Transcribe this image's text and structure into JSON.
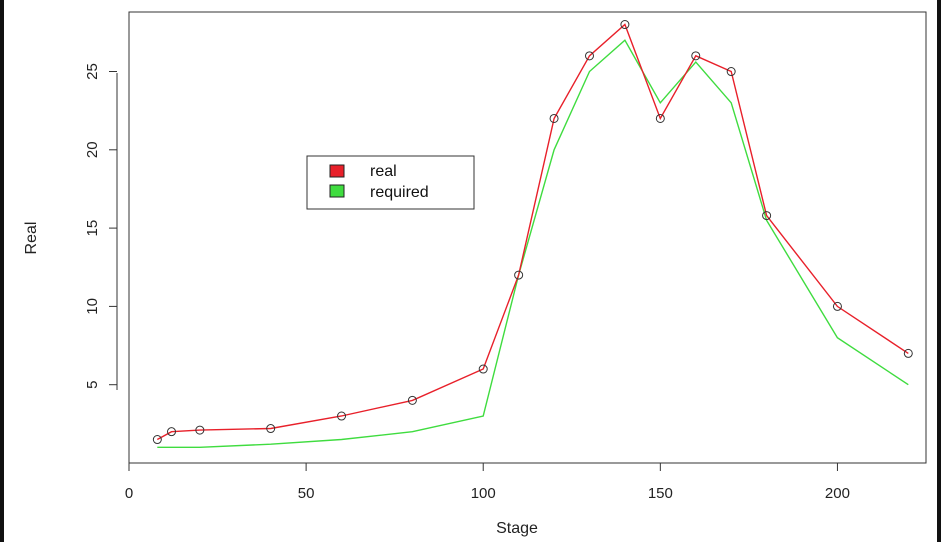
{
  "chart_data": {
    "type": "line",
    "xlabel": "Stage",
    "ylabel": "Real",
    "xlim": [
      0,
      225
    ],
    "ylim": [
      0,
      28.8
    ],
    "xticks": [
      0,
      50,
      100,
      150,
      200
    ],
    "yticks": [
      5,
      10,
      15,
      20,
      25
    ],
    "legend_position": "center-left",
    "grid": false,
    "series": [
      {
        "name": "real",
        "color": "#e8202a",
        "marker": "circle",
        "x": [
          8,
          12,
          20,
          40,
          60,
          80,
          100,
          110,
          120,
          130,
          140,
          150,
          160,
          170,
          180,
          200,
          220
        ],
        "y": [
          1.5,
          2.0,
          2.1,
          2.2,
          3.0,
          4.0,
          6.0,
          12.0,
          22.0,
          26.0,
          28.0,
          22.0,
          26.0,
          25.0,
          15.8,
          10.0,
          7.0
        ]
      },
      {
        "name": "required",
        "color": "#3fdc3f",
        "marker": "none",
        "x": [
          8,
          20,
          40,
          60,
          80,
          100,
          110,
          120,
          130,
          140,
          150,
          160,
          170,
          180,
          200,
          220
        ],
        "y": [
          1.0,
          1.0,
          1.2,
          1.5,
          2.0,
          3.0,
          12.0,
          20.0,
          25.0,
          27.0,
          23.0,
          25.6,
          23.0,
          15.5,
          8.0,
          5.0
        ]
      }
    ]
  }
}
